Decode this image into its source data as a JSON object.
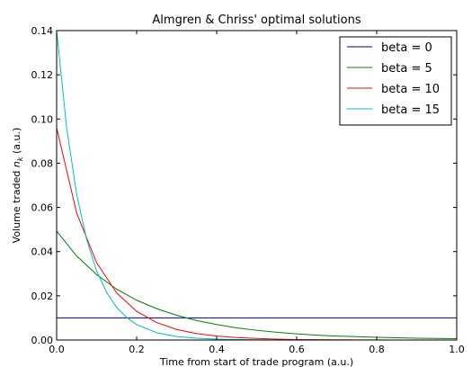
{
  "chart_data": {
    "type": "line",
    "title": "Almgren & Chriss' optimal solutions",
    "xlabel": "Time from start of trade program (a.u.)",
    "ylabel_prefix": "Volume traded ",
    "ylabel_var": "n",
    "ylabel_sub": "k",
    "ylabel_suffix": " (a.u.)",
    "xlim": [
      0.0,
      1.0
    ],
    "ylim": [
      0.0,
      0.14
    ],
    "xticks": [
      "0.0",
      "0.2",
      "0.4",
      "0.6",
      "0.8",
      "1.0"
    ],
    "yticks": [
      "0.00",
      "0.02",
      "0.04",
      "0.06",
      "0.08",
      "0.10",
      "0.12",
      "0.14"
    ],
    "grid": false,
    "legend_position": "top-right",
    "series": [
      {
        "name": "beta = 0",
        "color": "#000080",
        "x": [
          0.0,
          1.0
        ],
        "y": [
          0.01,
          0.01
        ]
      },
      {
        "name": "beta = 5",
        "color": "#008000",
        "x": [
          0.0,
          0.05,
          0.1,
          0.15,
          0.2,
          0.25,
          0.3,
          0.35,
          0.4,
          0.45,
          0.5,
          0.55,
          0.6,
          0.65,
          0.7,
          0.75,
          0.8,
          0.85,
          0.9,
          0.95,
          1.0
        ],
        "y": [
          0.0493,
          0.038,
          0.0296,
          0.023,
          0.018,
          0.0142,
          0.0112,
          0.0088,
          0.007,
          0.0055,
          0.0044,
          0.0035,
          0.0028,
          0.0022,
          0.0018,
          0.0015,
          0.0012,
          0.001,
          0.0008,
          0.0007,
          0.0006
        ]
      },
      {
        "name": "beta = 10",
        "color": "#ff0000",
        "x": [
          0.0,
          0.05,
          0.1,
          0.15,
          0.2,
          0.25,
          0.3,
          0.35,
          0.4,
          0.45,
          0.5,
          0.55,
          0.6,
          0.65,
          0.7,
          0.75,
          0.8,
          0.85,
          0.9,
          0.95,
          1.0
        ],
        "y": [
          0.096,
          0.0575,
          0.035,
          0.0213,
          0.013,
          0.0079,
          0.0048,
          0.0029,
          0.0018,
          0.0011,
          0.0007,
          0.0004,
          0.0002,
          0.00015,
          0.0001,
          6e-05,
          4e-05,
          2e-05,
          1e-05,
          1e-05,
          0.0
        ]
      },
      {
        "name": "beta = 15",
        "color": "#00bfbf",
        "x": [
          0.0,
          0.025,
          0.05,
          0.075,
          0.1,
          0.125,
          0.15,
          0.175,
          0.2,
          0.25,
          0.3,
          0.35,
          0.4,
          0.45,
          0.5,
          0.6,
          0.7,
          0.8,
          0.9,
          1.0
        ],
        "y": [
          0.14,
          0.096,
          0.066,
          0.0455,
          0.0312,
          0.0215,
          0.0148,
          0.0102,
          0.007,
          0.0033,
          0.0016,
          0.0008,
          0.0004,
          0.0002,
          0.0001,
          2e-05,
          0.0,
          0.0,
          0.0,
          0.0
        ]
      }
    ]
  }
}
